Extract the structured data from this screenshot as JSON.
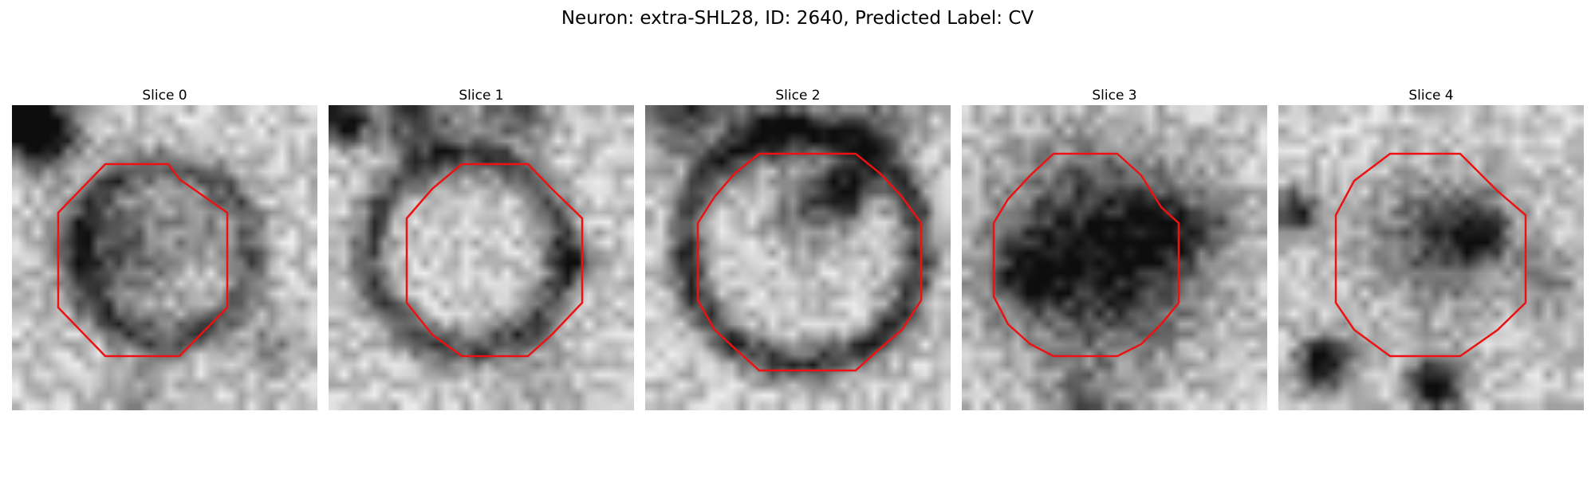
{
  "figure": {
    "title": "Neuron: extra-SHL28, ID: 2640, Predicted Label: CV",
    "outline_color": "#ee1111",
    "slices": [
      {
        "title": "Slice 0"
      },
      {
        "title": "Slice 1"
      },
      {
        "title": "Slice 2"
      },
      {
        "title": "Slice 3"
      },
      {
        "title": "Slice 4"
      }
    ]
  }
}
